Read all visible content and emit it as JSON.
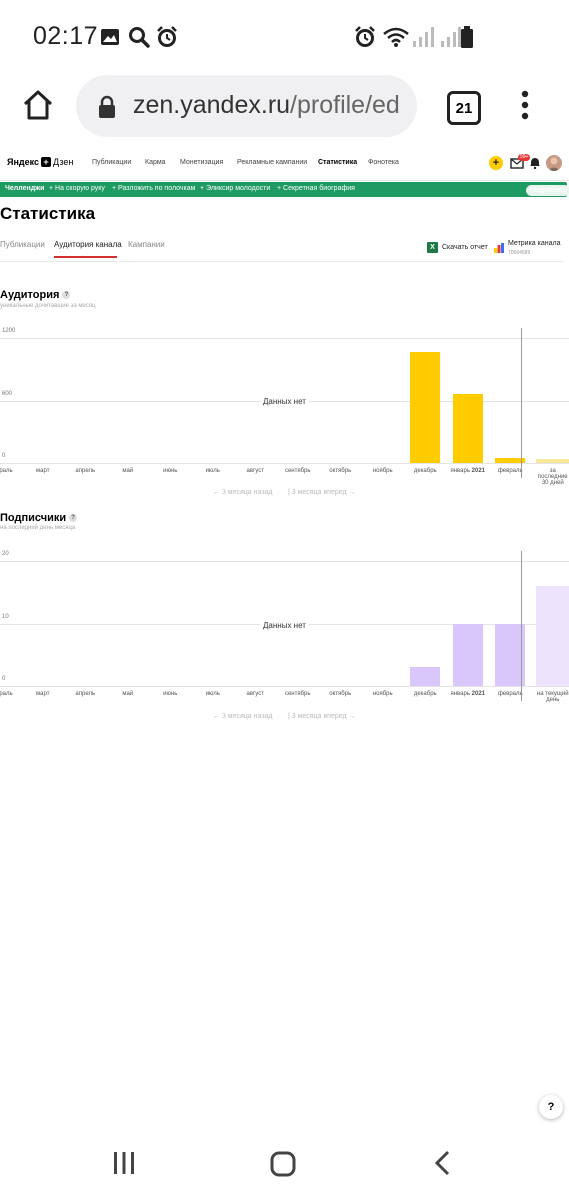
{
  "status": {
    "time": "02:17",
    "left_icons": [
      "image-icon",
      "search-icon",
      "alarm-icon"
    ],
    "right_icons": [
      "alarm-icon",
      "wifi-icon",
      "signal-icon",
      "battery-icon"
    ]
  },
  "browser": {
    "url_main": "zen.yandex.ru",
    "url_path": "/profile/ed",
    "tab_count": "21"
  },
  "site": {
    "logo_bold": "Яндекс",
    "logo_light": "Дзен",
    "nav": [
      "Публикации",
      "Карма",
      "Монетизация",
      "Рекламные кампании",
      "Статистика",
      "Фонотека"
    ],
    "notification_count": "99+"
  },
  "challenge": {
    "title": "Челленджи",
    "items": [
      "+ На скорую руку",
      "+ Разложить по полочкам",
      "+ Эликсир молодости",
      "+ Секретная биография"
    ],
    "more": "Подробнее"
  },
  "page": {
    "title": "Статистика",
    "tabs": [
      "Публикации",
      "Аудитория канала",
      "Кампании"
    ],
    "download": "Скачать отчет",
    "metrika": "Метрика канала",
    "metrika_id": "70564589"
  },
  "colors": {
    "audience_bar": "#ffcc00",
    "audience_bar_light": "#fbe79a",
    "subs_bar": "#d9c6fb",
    "subs_bar_light": "#ede3fd",
    "green": "#1e9a63"
  },
  "audience": {
    "title": "Аудитория",
    "subtitle": "уникальные дочитавшие за месяц",
    "no_data": "Данных нет",
    "pager_prev": "3 месяца назад",
    "pager_next": "3 месяца вперед"
  },
  "subscribers": {
    "title": "Подписчики",
    "subtitle": "на последний день месяца",
    "no_data": "Данных нет",
    "pager_prev": "3 месяца назад",
    "pager_next": "3 месяца вперед"
  },
  "chart_data": [
    {
      "type": "bar",
      "title": "Аудитория",
      "categories": [
        "февраль",
        "март",
        "апрель",
        "май",
        "июнь",
        "июль",
        "август",
        "сентябрь",
        "октябрь",
        "ноябрь",
        "декабрь",
        "январь 2021",
        "февраль",
        "за последние 30 дней"
      ],
      "values": [
        0,
        0,
        0,
        0,
        0,
        0,
        0,
        0,
        0,
        0,
        1070,
        665,
        50,
        35
      ],
      "yticks": [
        "0",
        "600",
        "1200"
      ],
      "ylim": [
        0,
        1200
      ],
      "grid": true
    },
    {
      "type": "bar",
      "title": "Подписчики",
      "categories": [
        "февраль",
        "март",
        "апрель",
        "май",
        "июнь",
        "июль",
        "август",
        "сентябрь",
        "октябрь",
        "ноябрь",
        "декабрь",
        "январь 2021",
        "февраль",
        "на текущий день"
      ],
      "values": [
        0,
        0,
        0,
        0,
        0,
        0,
        0,
        0,
        0,
        0,
        3,
        10,
        10,
        16
      ],
      "yticks": [
        "0",
        "10",
        "20"
      ],
      "ylim": [
        0,
        20
      ],
      "grid": true
    }
  ]
}
